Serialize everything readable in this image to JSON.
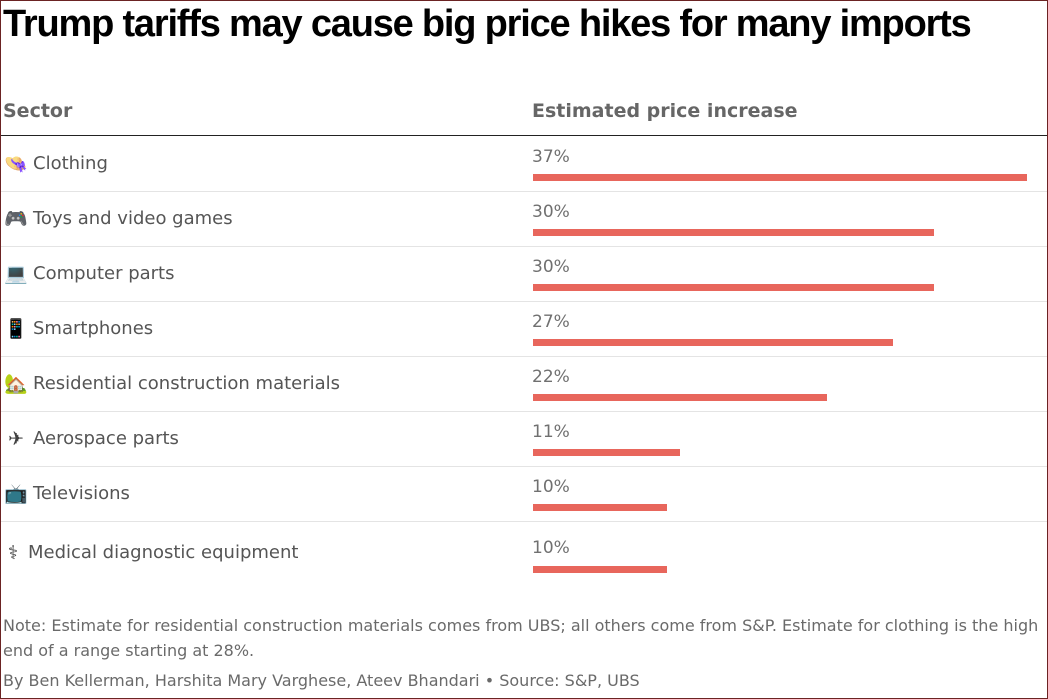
{
  "title": "Trump tariffs may cause big price hikes for many imports",
  "columns": {
    "sector": "Sector",
    "estimate": "Estimated price increase"
  },
  "colors": {
    "bar": "#e8665c"
  },
  "chart_data": {
    "type": "bar",
    "orientation": "horizontal",
    "title": "Trump tariffs may cause big price hikes for many imports",
    "xlabel": "Estimated price increase",
    "ylabel": "Sector",
    "categories": [
      "Clothing",
      "Toys and video games",
      "Computer parts",
      "Smartphones",
      "Residential construction materials",
      "Aerospace parts",
      "Televisions",
      "Medical diagnostic equipment"
    ],
    "values": [
      37,
      30,
      30,
      27,
      22,
      11,
      10,
      10
    ],
    "value_labels": [
      "37%",
      "30%",
      "30%",
      "27%",
      "22%",
      "11%",
      "10%",
      "10%"
    ],
    "icons": [
      "hat-icon",
      "gamepad-icon",
      "laptop-icon",
      "smartphone-icon",
      "house-icon",
      "airplane-icon",
      "television-icon",
      "stethoscope-icon"
    ],
    "xlim": [
      0,
      37
    ],
    "grid": false,
    "legend": "none"
  },
  "note": "Note: Estimate for residential construction materials comes from UBS; all others come from S&P. Estimate for clothing is the high end of a range starting at 28%.",
  "byline": "By Ben Kellerman, Harshita Mary Varghese, Ateev Bhandari • Source: S&P, UBS"
}
